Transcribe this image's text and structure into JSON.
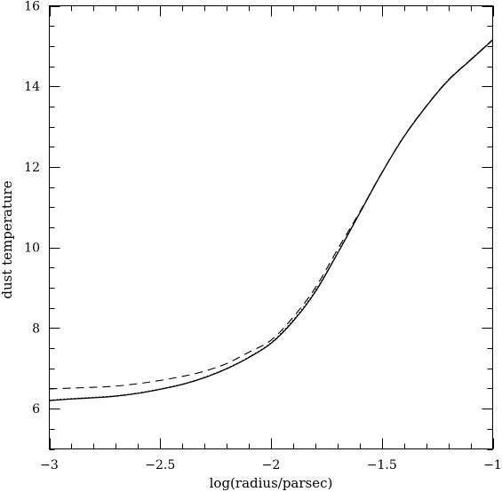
{
  "chart_data": {
    "type": "line",
    "title": "",
    "xlabel": "log(radius/parsec)",
    "ylabel": "dust temperature",
    "xlim": [
      -3,
      -1
    ],
    "ylim": [
      5,
      16
    ],
    "grid": false,
    "x_major_ticks": [
      -3,
      -2.5,
      -2,
      -1.5,
      -1
    ],
    "x_tick_labels": [
      "−3",
      "−2.5",
      "−2",
      "−1.5",
      "−1"
    ],
    "y_major_ticks": [
      6,
      8,
      10,
      12,
      14,
      16
    ],
    "y_tick_labels": [
      "6",
      "8",
      "10",
      "12",
      "14",
      "16"
    ],
    "x_minor_step": 0.1,
    "y_minor_step": 0.5,
    "series": [
      {
        "style": "solid",
        "x": [
          -3.0,
          -2.9,
          -2.8,
          -2.7,
          -2.6,
          -2.5,
          -2.4,
          -2.3,
          -2.2,
          -2.1,
          -2.0,
          -1.9,
          -1.8,
          -1.7,
          -1.6,
          -1.5,
          -1.4,
          -1.3,
          -1.2,
          -1.1,
          -1.0
        ],
        "y": [
          6.2,
          6.24,
          6.27,
          6.31,
          6.38,
          6.48,
          6.6,
          6.77,
          6.99,
          7.27,
          7.62,
          8.17,
          8.9,
          9.85,
          10.85,
          11.85,
          12.75,
          13.5,
          14.15,
          14.65,
          15.15
        ]
      },
      {
        "style": "dotted",
        "x": [
          -3.0,
          -2.9,
          -2.8,
          -2.7,
          -2.6,
          -2.5,
          -2.4,
          -2.3,
          -2.2,
          -2.1,
          -2.0,
          -1.9,
          -1.8,
          -1.7,
          -1.6,
          -1.5,
          -1.4,
          -1.3,
          -1.2,
          -1.1,
          -1.0
        ],
        "y": [
          6.21,
          6.25,
          6.28,
          6.32,
          6.39,
          6.49,
          6.61,
          6.78,
          7.0,
          7.28,
          7.64,
          8.2,
          8.93,
          9.87,
          10.86,
          11.86,
          12.76,
          13.51,
          14.16,
          14.66,
          15.16
        ]
      },
      {
        "style": "dashed",
        "x": [
          -3.0,
          -2.9,
          -2.8,
          -2.7,
          -2.6,
          -2.5,
          -2.4,
          -2.3,
          -2.2,
          -2.1,
          -2.0,
          -1.9,
          -1.8,
          -1.7,
          -1.6,
          -1.5,
          -1.4,
          -1.3,
          -1.2,
          -1.1,
          -1.0
        ],
        "y": [
          6.49,
          6.51,
          6.53,
          6.56,
          6.62,
          6.7,
          6.8,
          6.93,
          7.12,
          7.4,
          7.7,
          8.27,
          9.0,
          9.95,
          10.88,
          11.86,
          12.76,
          13.51,
          14.16,
          14.66,
          15.16
        ]
      }
    ]
  }
}
